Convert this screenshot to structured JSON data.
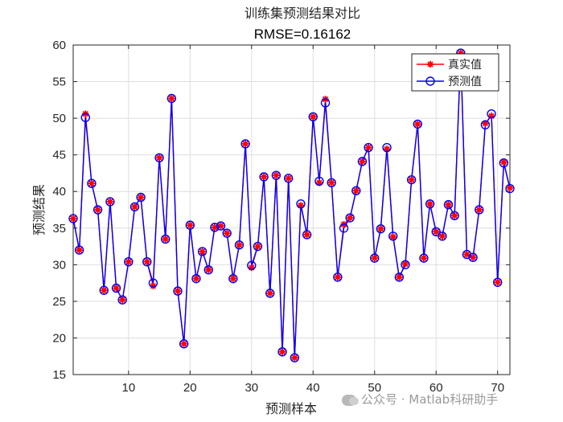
{
  "chart_data": {
    "type": "line",
    "title": "训练集预测结果对比",
    "subtitle": "RMSE=0.16162",
    "xlabel": "预测样本",
    "ylabel": "预测结果",
    "xlim": [
      1,
      72
    ],
    "ylim": [
      15,
      60
    ],
    "xticks": [
      10,
      20,
      30,
      40,
      50,
      60,
      70
    ],
    "yticks": [
      15,
      20,
      25,
      30,
      35,
      40,
      45,
      50,
      55,
      60
    ],
    "grid": true,
    "legend_position": "top-right",
    "series": [
      {
        "name": "真实值",
        "color": "#ff0000",
        "marker": "asterisk",
        "values": [
          36.3,
          32.0,
          50.6,
          41.1,
          37.5,
          26.5,
          38.6,
          26.8,
          25.2,
          30.4,
          37.9,
          39.2,
          30.4,
          27.1,
          44.6,
          33.5,
          52.7,
          26.4,
          19.2,
          35.4,
          28.1,
          31.8,
          29.3,
          35.1,
          35.3,
          34.3,
          28.1,
          32.7,
          46.5,
          29.6,
          32.5,
          42.0,
          26.1,
          42.2,
          18.1,
          41.8,
          17.3,
          38.1,
          34.1,
          50.2,
          41.2,
          52.6,
          41.2,
          28.3,
          35.5,
          36.4,
          40.1,
          44.1,
          46.0,
          30.9,
          34.9,
          45.8,
          33.8,
          28.3,
          30.1,
          41.6,
          49.2,
          30.9,
          38.3,
          34.5,
          33.9,
          38.2,
          36.7,
          58.9,
          31.4,
          31.0,
          37.5,
          49.3,
          50.3,
          27.6,
          44.0,
          40.5
        ]
      },
      {
        "name": "预测值",
        "color": "#0000ff",
        "marker": "circle",
        "values": [
          36.3,
          32.0,
          50.1,
          41.1,
          37.5,
          26.5,
          38.6,
          26.8,
          25.2,
          30.4,
          37.9,
          39.2,
          30.4,
          27.5,
          44.6,
          33.5,
          52.7,
          26.4,
          19.2,
          35.4,
          28.1,
          31.8,
          29.3,
          35.1,
          35.3,
          34.3,
          28.1,
          32.7,
          46.5,
          29.9,
          32.5,
          42.0,
          26.1,
          42.2,
          18.1,
          41.8,
          17.3,
          38.3,
          34.1,
          50.2,
          41.4,
          52.1,
          41.2,
          28.3,
          35.0,
          36.4,
          40.1,
          44.1,
          46.0,
          30.9,
          34.9,
          46.0,
          33.9,
          28.3,
          30.0,
          41.6,
          49.2,
          30.9,
          38.3,
          34.5,
          33.9,
          38.2,
          36.7,
          58.9,
          31.4,
          31.0,
          37.5,
          49.1,
          50.6,
          27.6,
          43.9,
          40.4
        ]
      }
    ]
  },
  "watermark": {
    "text": "公众号 · Matlab科研助手",
    "logo_icon": "wechat-logo-icon"
  }
}
